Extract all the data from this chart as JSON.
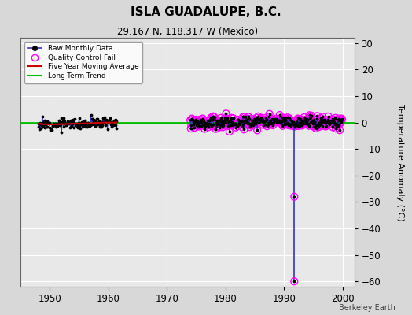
{
  "title": "ISLA GUADALUPE, B.C.",
  "subtitle": "29.167 N, 118.317 W (Mexico)",
  "ylabel": "Temperature Anomaly (°C)",
  "credit": "Berkeley Earth",
  "xlim": [
    1945,
    2002
  ],
  "ylim": [
    -62,
    32
  ],
  "yticks": [
    -60,
    -50,
    -40,
    -30,
    -20,
    -10,
    0,
    10,
    20,
    30
  ],
  "xticks": [
    1950,
    1960,
    1970,
    1980,
    1990,
    2000
  ],
  "bg_color": "#d8d8d8",
  "plot_bg_color": "#e8e8e8",
  "grid_color": "#ffffff",
  "raw_line_color": "#3333cc",
  "raw_dot_color": "#000000",
  "qc_fail_color": "#ff00ff",
  "moving_avg_color": "#cc0000",
  "trend_color": "#00bb00",
  "early_period_start": 1948.0,
  "early_period_end": 1961.5,
  "late_period_start": 1974.0,
  "late_period_end": 2000.0,
  "spike_x": 1991.75,
  "spike_y_top": 0.0,
  "spike_y_bot": -60.0,
  "spike_qc1_y": -28.0,
  "spike_qc2_y": -60.0
}
